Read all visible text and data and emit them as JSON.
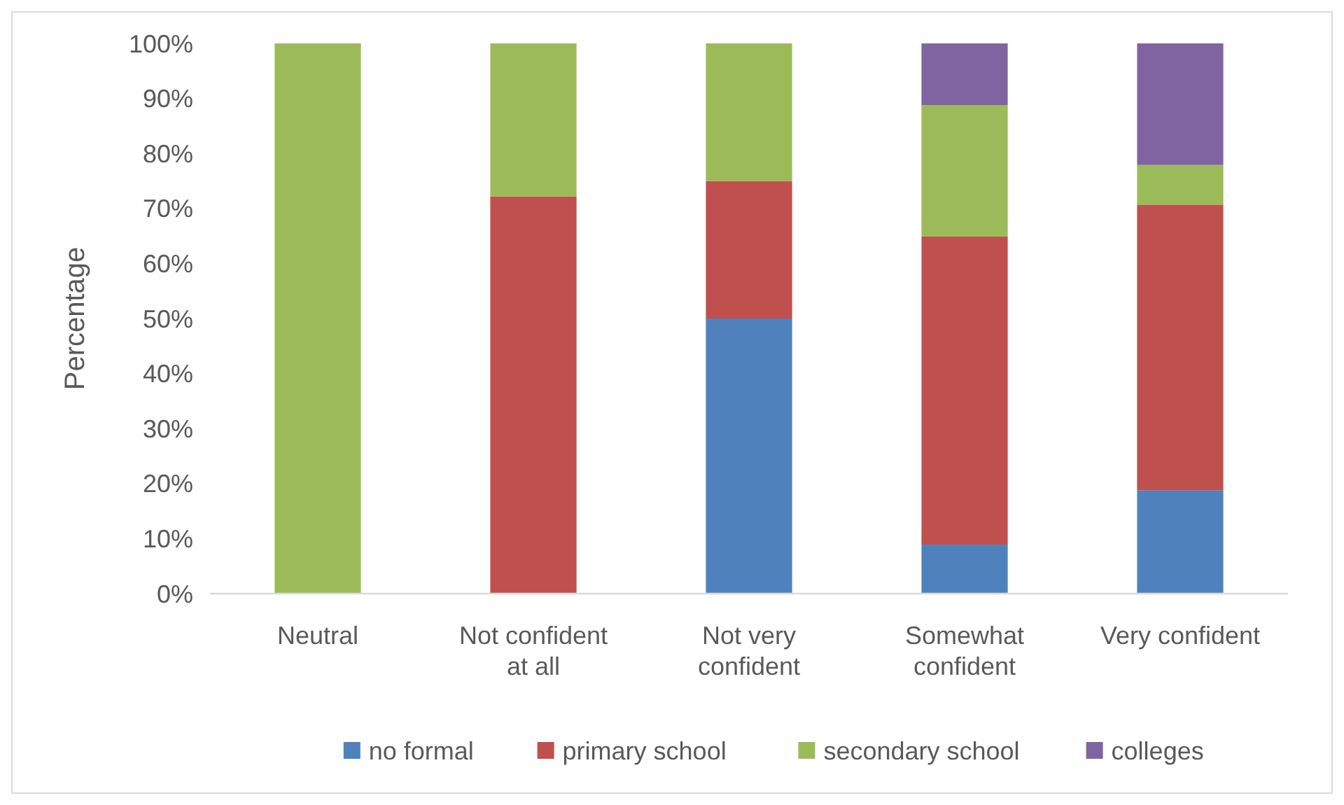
{
  "chart_data": {
    "type": "bar",
    "stacked": true,
    "ylabel": "Percentage",
    "categories": [
      "Neutral",
      "Not confident at all",
      "Not very confident",
      "Somewhat confident",
      "Very confident"
    ],
    "series": [
      {
        "name": "no formal",
        "color": "#4f81bd",
        "values": [
          0,
          0,
          50,
          8.9,
          18.8
        ]
      },
      {
        "name": "primary school",
        "color": "#c0504d",
        "values": [
          0,
          72.2,
          25,
          56,
          51.9
        ]
      },
      {
        "name": "secondary school",
        "color": "#9bbb59",
        "values": [
          100,
          27.8,
          25,
          23.9,
          7.2
        ]
      },
      {
        "name": "colleges",
        "color": "#8064a2",
        "values": [
          0,
          0,
          0,
          11.2,
          22.1
        ]
      }
    ],
    "ylim": [
      0,
      100
    ],
    "yticks": [
      {
        "value": 0,
        "label": "0%"
      },
      {
        "value": 10,
        "label": "10%"
      },
      {
        "value": 20,
        "label": "20%"
      },
      {
        "value": 30,
        "label": "30%"
      },
      {
        "value": 40,
        "label": "40%"
      },
      {
        "value": 50,
        "label": "50%"
      },
      {
        "value": 60,
        "label": "60%"
      },
      {
        "value": 70,
        "label": "70%"
      },
      {
        "value": 80,
        "label": "80%"
      },
      {
        "value": 90,
        "label": "90%"
      },
      {
        "value": 100,
        "label": "100%"
      }
    ],
    "grid": false,
    "legend": "bottom"
  }
}
